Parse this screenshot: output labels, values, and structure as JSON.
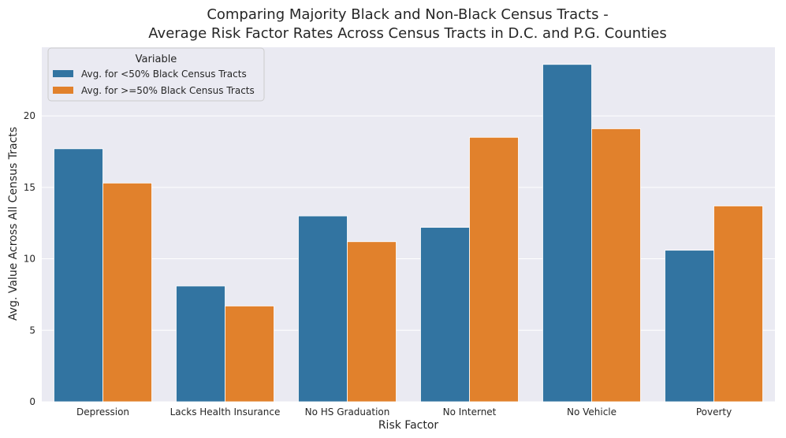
{
  "chart_data": {
    "type": "bar",
    "title_lines": [
      "Comparing Majority Black and Non-Black Census Tracts -",
      "Average Risk Factor Rates Across Census Tracts in D.C. and P.G. Counties"
    ],
    "xlabel": "Risk Factor",
    "ylabel": "Avg. Value Across All Census Tracts",
    "categories": [
      "Depression",
      "Lacks Health Insurance",
      "No HS Graduation",
      "No Internet",
      "No Vehicle",
      "Poverty"
    ],
    "series": [
      {
        "name": "Avg. for <50% Black Census Tracts",
        "color": "#3274a1",
        "values": [
          17.7,
          8.1,
          13.0,
          12.2,
          23.6,
          10.6
        ]
      },
      {
        "name": "Avg. for >=50% Black Census Tracts",
        "color": "#e1812c",
        "values": [
          15.3,
          6.7,
          11.2,
          18.5,
          19.1,
          13.7
        ]
      }
    ],
    "ylim": [
      0,
      24.8
    ],
    "yticks": [
      0,
      5,
      10,
      15,
      20
    ],
    "grid": true,
    "legend": {
      "title": "Variable",
      "placement": "top-left"
    },
    "background_color": "#eaeaf2"
  }
}
